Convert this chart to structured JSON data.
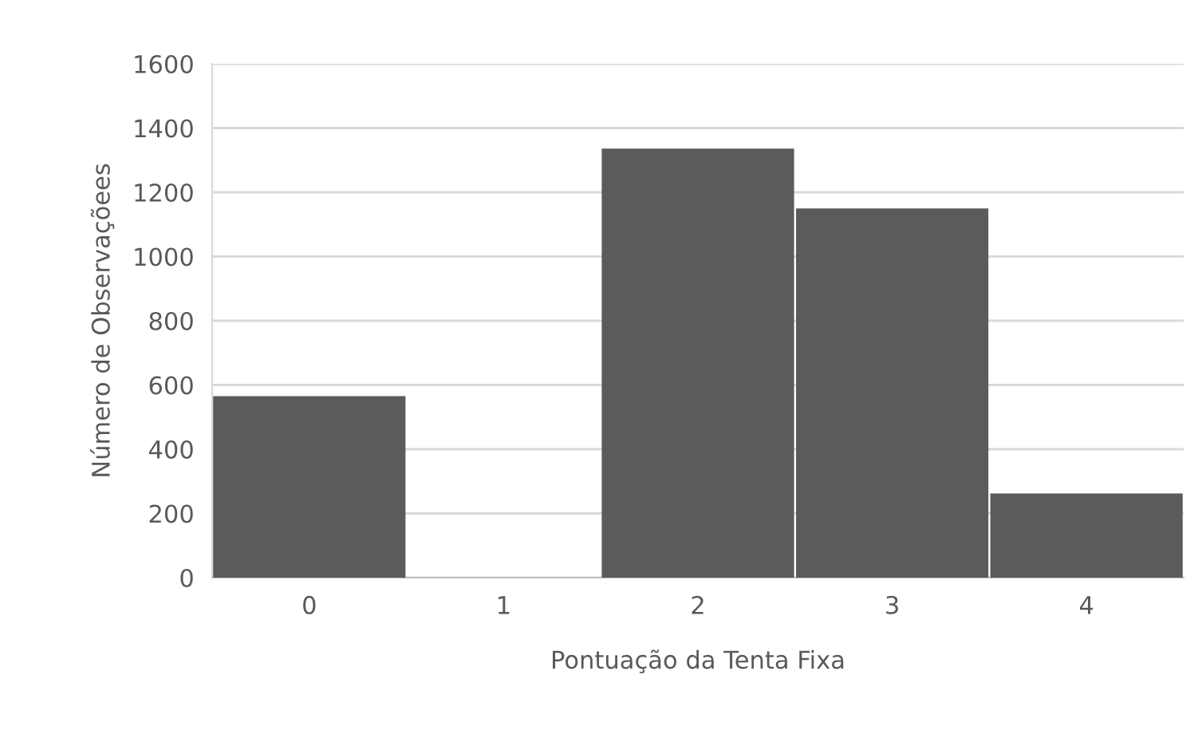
{
  "chart_data": {
    "type": "bar",
    "xlabel": "Pontuação da Tenta Fixa",
    "ylabel": "Número de Observaçõees",
    "categories": [
      "0",
      "1",
      "2",
      "3",
      "4"
    ],
    "values": [
      565,
      0,
      1336,
      1150,
      262
    ],
    "color": "#5b5b5b",
    "ylim": [
      0,
      1600
    ],
    "yticks": [
      0,
      200,
      400,
      600,
      800,
      1000,
      1200,
      1400,
      1600
    ],
    "grid": "y",
    "legend": false
  }
}
